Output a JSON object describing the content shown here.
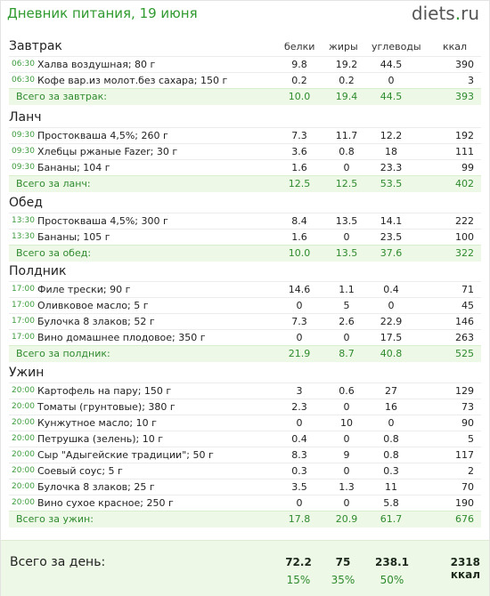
{
  "header": {
    "title": "Дневник питания, 19 июня"
  },
  "brand": {
    "name": "diets",
    "dot": ".",
    "tld": "ru"
  },
  "columns": {
    "protein": "белки",
    "fat": "жиры",
    "carbs": "углеводы",
    "kcal": "ккал"
  },
  "meals": [
    {
      "name": "Завтрак",
      "items": [
        {
          "time": "06:30",
          "name": "Халва воздушная; 80 г",
          "p": "9.8",
          "f": "19.2",
          "c": "44.5",
          "k": "390"
        },
        {
          "time": "06:30",
          "name": "Кофе вар.из молот.без сахара; 150 г",
          "p": "0.2",
          "f": "0.2",
          "c": "0",
          "k": "3"
        }
      ],
      "total": {
        "label": "Всего за завтрак:",
        "p": "10.0",
        "f": "19.4",
        "c": "44.5",
        "k": "393"
      }
    },
    {
      "name": "Ланч",
      "items": [
        {
          "time": "09:30",
          "name": "Простокваша 4,5%; 260 г",
          "p": "7.3",
          "f": "11.7",
          "c": "12.2",
          "k": "192"
        },
        {
          "time": "09:30",
          "name": "Хлебцы ржаные Fazer; 30 г",
          "p": "3.6",
          "f": "0.8",
          "c": "18",
          "k": "111"
        },
        {
          "time": "09:30",
          "name": "Бананы; 104 г",
          "p": "1.6",
          "f": "0",
          "c": "23.3",
          "k": "99"
        }
      ],
      "total": {
        "label": "Всего за ланч:",
        "p": "12.5",
        "f": "12.5",
        "c": "53.5",
        "k": "402"
      }
    },
    {
      "name": "Обед",
      "items": [
        {
          "time": "13:30",
          "name": "Простокваша 4,5%; 300 г",
          "p": "8.4",
          "f": "13.5",
          "c": "14.1",
          "k": "222"
        },
        {
          "time": "13:30",
          "name": "Бананы; 105 г",
          "p": "1.6",
          "f": "0",
          "c": "23.5",
          "k": "100"
        }
      ],
      "total": {
        "label": "Всего за обед:",
        "p": "10.0",
        "f": "13.5",
        "c": "37.6",
        "k": "322"
      }
    },
    {
      "name": "Полдник",
      "items": [
        {
          "time": "17:00",
          "name": "Филе трески; 90 г",
          "p": "14.6",
          "f": "1.1",
          "c": "0.4",
          "k": "71"
        },
        {
          "time": "17:00",
          "name": "Оливковое масло; 5 г",
          "p": "0",
          "f": "5",
          "c": "0",
          "k": "45"
        },
        {
          "time": "17:00",
          "name": "Булочка 8 злаков; 52 г",
          "p": "7.3",
          "f": "2.6",
          "c": "22.9",
          "k": "146"
        },
        {
          "time": "17:00",
          "name": "Вино домашнее плодовое; 350 г",
          "p": "0",
          "f": "0",
          "c": "17.5",
          "k": "263"
        }
      ],
      "total": {
        "label": "Всего за полдник:",
        "p": "21.9",
        "f": "8.7",
        "c": "40.8",
        "k": "525"
      }
    },
    {
      "name": "Ужин",
      "items": [
        {
          "time": "20:00",
          "name": "Картофель на пару; 150 г",
          "p": "3",
          "f": "0.6",
          "c": "27",
          "k": "129"
        },
        {
          "time": "20:00",
          "name": "Томаты (грунтовые); 380 г",
          "p": "2.3",
          "f": "0",
          "c": "16",
          "k": "73"
        },
        {
          "time": "20:00",
          "name": "Кунжутное масло; 10 г",
          "p": "0",
          "f": "10",
          "c": "0",
          "k": "90"
        },
        {
          "time": "20:00",
          "name": "Петрушка (зелень); 10 г",
          "p": "0.4",
          "f": "0",
          "c": "0.8",
          "k": "5"
        },
        {
          "time": "20:00",
          "name": "Сыр \"Адыгейские традиции\"; 50 г",
          "p": "8.3",
          "f": "9",
          "c": "0.8",
          "k": "117"
        },
        {
          "time": "20:00",
          "name": "Соевый соус; 5 г",
          "p": "0.3",
          "f": "0",
          "c": "0.3",
          "k": "2"
        },
        {
          "time": "20:00",
          "name": "Булочка 8 злаков; 25 г",
          "p": "3.5",
          "f": "1.3",
          "c": "11",
          "k": "70"
        },
        {
          "time": "20:00",
          "name": "Вино сухое красное; 250 г",
          "p": "0",
          "f": "0",
          "c": "5.8",
          "k": "190"
        }
      ],
      "total": {
        "label": "Всего за ужин:",
        "p": "17.8",
        "f": "20.9",
        "c": "61.7",
        "k": "676"
      }
    }
  ],
  "day_total": {
    "label": "Всего за день:",
    "protein": "72.2",
    "fat": "75",
    "carbs": "238.1",
    "kcal": "2318 ккал",
    "protein_pct": "15%",
    "fat_pct": "35%",
    "carbs_pct": "50%"
  },
  "colors": {
    "accent": "#2f9a2f",
    "total_bg": "#edf9e6"
  }
}
